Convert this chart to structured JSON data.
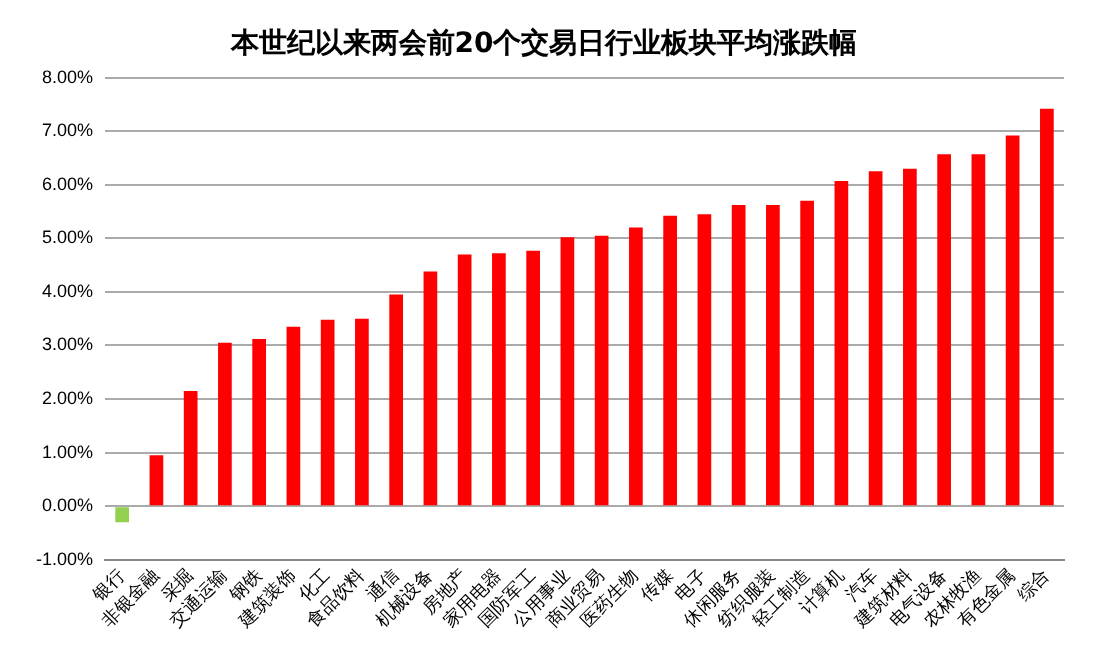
{
  "chart_data": {
    "type": "bar",
    "title": "本世纪以来两会前20个交易日行业板块平均涨跌幅",
    "categories": [
      "银行",
      "非银金融",
      "采掘",
      "交通运输",
      "钢铁",
      "建筑装饰",
      "化工",
      "食品饮料",
      "通信",
      "机械设备",
      "房地产",
      "家用电器",
      "国防军工",
      "公用事业",
      "商业贸易",
      "医药生物",
      "传媒",
      "电子",
      "休闲服务",
      "纺织服装",
      "轻工制造",
      "计算机",
      "汽车",
      "建筑材料",
      "电气设备",
      "农林牧渔",
      "有色金属",
      "综合"
    ],
    "values": [
      -0.3,
      0.95,
      2.15,
      3.05,
      3.12,
      3.35,
      3.48,
      3.5,
      3.95,
      4.38,
      4.7,
      4.72,
      4.77,
      5.02,
      5.05,
      5.2,
      5.42,
      5.45,
      5.62,
      5.62,
      5.7,
      6.07,
      6.25,
      6.3,
      6.57,
      6.57,
      6.92,
      7.42
    ],
    "colors": [
      "#92d050",
      "#ff0000",
      "#ff0000",
      "#ff0000",
      "#ff0000",
      "#ff0000",
      "#ff0000",
      "#ff0000",
      "#ff0000",
      "#ff0000",
      "#ff0000",
      "#ff0000",
      "#ff0000",
      "#ff0000",
      "#ff0000",
      "#ff0000",
      "#ff0000",
      "#ff0000",
      "#ff0000",
      "#ff0000",
      "#ff0000",
      "#ff0000",
      "#ff0000",
      "#ff0000",
      "#ff0000",
      "#ff0000",
      "#ff0000",
      "#ff0000"
    ],
    "ylim": [
      -1,
      8
    ],
    "yticks": [
      {
        "value": -1,
        "label": "-1.00%"
      },
      {
        "value": 0,
        "label": "0.00%"
      },
      {
        "value": 1,
        "label": "1.00%"
      },
      {
        "value": 2,
        "label": "2.00%"
      },
      {
        "value": 3,
        "label": "3.00%"
      },
      {
        "value": 4,
        "label": "4.00%"
      },
      {
        "value": 5,
        "label": "5.00%"
      },
      {
        "value": 6,
        "label": "6.00%"
      },
      {
        "value": 7,
        "label": "7.00%"
      },
      {
        "value": 8,
        "label": "8.00%"
      }
    ],
    "grid": "y",
    "legend": false
  }
}
